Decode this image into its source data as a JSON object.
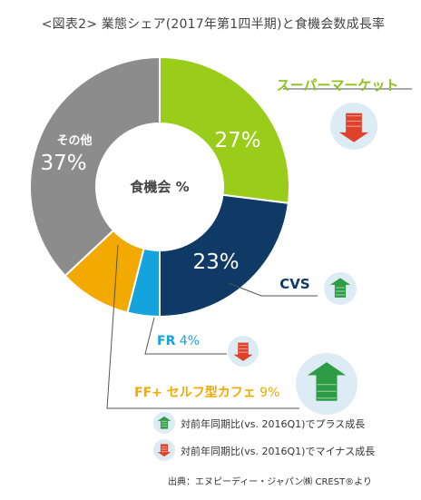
{
  "title": "<図表2> 業態シェア(2017年第1四半期)と食機会数成長率",
  "source": "出典：エヌピーディー・ジャパン㈱ CREST®より",
  "chart_data": {
    "type": "pie",
    "center_label": "食機会 %",
    "slices": [
      {
        "name": "スーパーマーケット",
        "value": 27,
        "value_label": "27%",
        "color": "#9ACD1A",
        "trend": "down"
      },
      {
        "name": "CVS",
        "value": 23,
        "value_label": "23%",
        "color": "#0F3A66",
        "trend": "up"
      },
      {
        "name": "FR",
        "value": 4,
        "value_label": "4%",
        "color": "#14A3DC",
        "trend": "down"
      },
      {
        "name": "FF+ セルフ型カフェ",
        "value": 9,
        "value_label": "9%",
        "color": "#F2A900",
        "trend": "up"
      },
      {
        "name": "その他",
        "value": 37,
        "value_label": "37%",
        "color": "#8C8C8C",
        "trend": null
      }
    ],
    "legend": [
      {
        "trend": "up",
        "text": "対前年同期比(vs. 2016Q1)でプラス成長"
      },
      {
        "trend": "down",
        "text": "対前年同期比(vs. 2016Q1)でマイナス成長"
      }
    ]
  }
}
